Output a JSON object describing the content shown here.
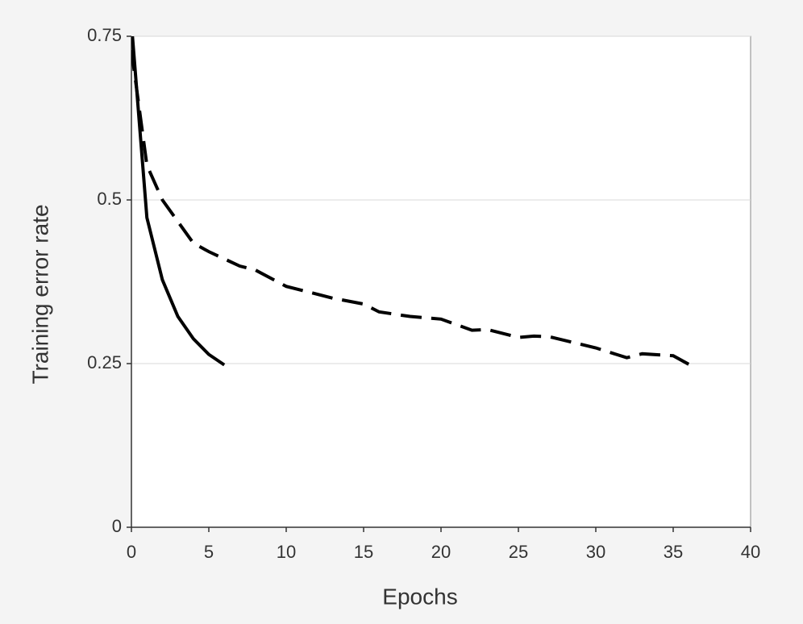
{
  "chart_data": {
    "type": "line",
    "x_label": "Epochs",
    "y_label": "Training error rate",
    "xlim": [
      0,
      40
    ],
    "ylim": [
      0,
      0.75
    ],
    "xticks": [
      0,
      5,
      10,
      15,
      20,
      25,
      30,
      35,
      40
    ],
    "yticks": [
      0,
      0.25,
      0.5,
      0.75
    ],
    "grid": true,
    "series": [
      {
        "color": "#000000",
        "dashed": false,
        "x": [
          0,
          1,
          2,
          3,
          4,
          5,
          6
        ],
        "values": [
          0.77,
          0.473,
          0.378,
          0.322,
          0.288,
          0.264,
          0.248
        ]
      },
      {
        "color": "#000000",
        "dashed": true,
        "x": [
          0,
          1,
          2,
          4,
          5,
          7,
          8,
          10,
          13,
          15,
          16,
          18,
          20,
          22,
          23,
          25,
          26,
          27,
          30,
          32,
          33,
          35,
          36
        ],
        "values": [
          0.729,
          0.553,
          0.5,
          0.434,
          0.421,
          0.399,
          0.393,
          0.368,
          0.35,
          0.341,
          0.329,
          0.322,
          0.318,
          0.301,
          0.302,
          0.29,
          0.292,
          0.291,
          0.274,
          0.259,
          0.265,
          0.262,
          0.249
        ]
      }
    ]
  }
}
